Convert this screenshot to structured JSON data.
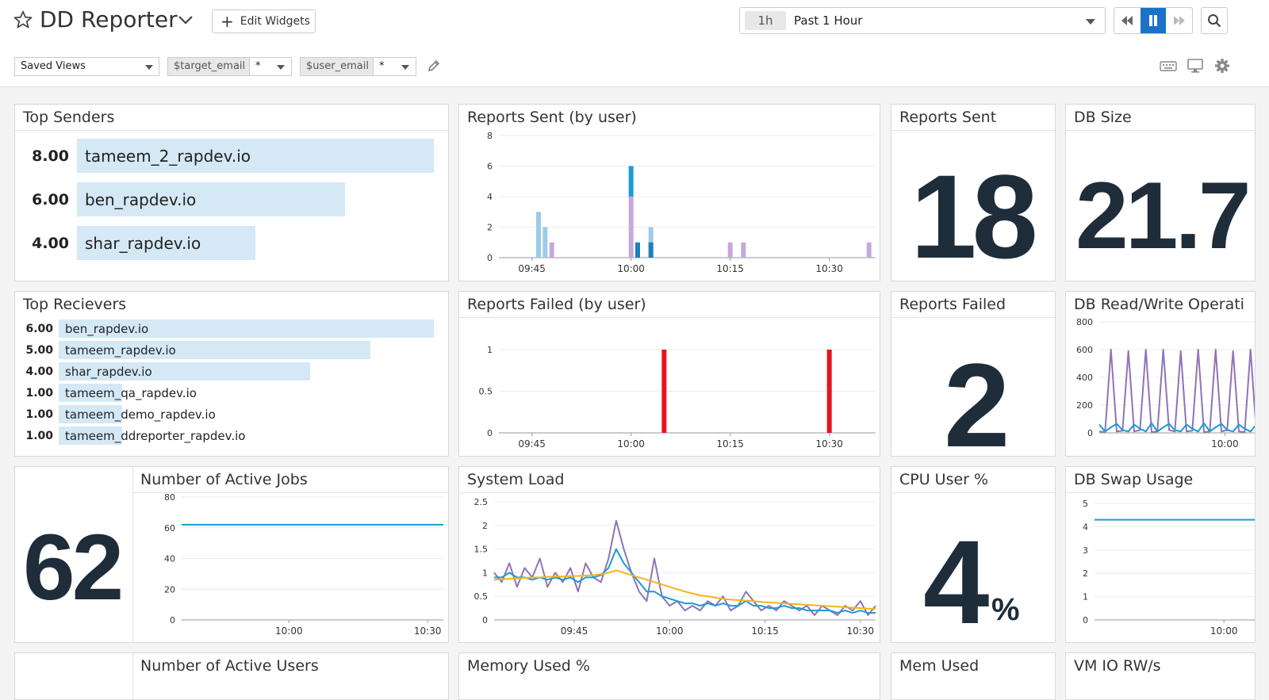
{
  "header": {
    "title": "DD Reporter",
    "edit_widgets_label": "Edit Widgets",
    "time_abbr": "1h",
    "time_label": "Past 1 Hour"
  },
  "filters": {
    "saved_views": "Saved Views",
    "var1_name": "$target_email",
    "var1_value": "*",
    "var2_name": "$user_email",
    "var2_value": "*"
  },
  "colors": {
    "accent": "#1a73c8",
    "bar_fill": "#d4e8f5",
    "bignum": "#1f2d3a",
    "failed": "#e8141d",
    "series_purple": "#8f74b7",
    "series_blue": "#1c9ad6",
    "series_yellow": "#f1b51d"
  },
  "widgets": {
    "top_senders": {
      "title": "Top Senders",
      "rows": [
        {
          "value": "8.00",
          "name": "tameem_2_rapdev.io",
          "fraction": 1.0
        },
        {
          "value": "6.00",
          "name": "ben_rapdev.io",
          "fraction": 0.75
        },
        {
          "value": "4.00",
          "name": "shar_rapdev.io",
          "fraction": 0.5
        }
      ]
    },
    "top_receivers": {
      "title": "Top Recievers",
      "rows": [
        {
          "value": "6.00",
          "name": "ben_rapdev.io",
          "fraction": 1.0
        },
        {
          "value": "5.00",
          "name": "tameem_rapdev.io",
          "fraction": 0.83
        },
        {
          "value": "4.00",
          "name": "shar_rapdev.io",
          "fraction": 0.67
        },
        {
          "value": "1.00",
          "name": "tameem_qa_rapdev.io",
          "fraction": 0.17
        },
        {
          "value": "1.00",
          "name": "tameem_demo_rapdev.io",
          "fraction": 0.17
        },
        {
          "value": "1.00",
          "name": "tameem_ddreporter_rapdev.io",
          "fraction": 0.17
        }
      ]
    },
    "reports_sent_value": {
      "title": "Reports Sent",
      "value": "18"
    },
    "db_size": {
      "title": "DB Size",
      "value": "21.7"
    },
    "reports_failed_value": {
      "title": "Reports Failed",
      "value": "2"
    },
    "active_jobs_value": {
      "value": "62"
    },
    "cpu_user": {
      "title": "CPU User %",
      "value": "4",
      "unit": "%"
    },
    "bottom": {
      "active_users_title": "Number of Active Users",
      "memory_title": "Memory Used %",
      "mem_used_title": "Mem Used",
      "vm_io_title": "VM IO RW/s"
    }
  },
  "chart_data": [
    {
      "id": "reports_sent_by_user",
      "type": "bar",
      "title": "Reports Sent (by user)",
      "ylim": [
        0,
        8
      ],
      "yticks": [
        0,
        2,
        4,
        6,
        8
      ],
      "xlim": [
        "09:40",
        "10:37"
      ],
      "xticks": [
        "09:45",
        "10:00",
        "10:15",
        "10:30"
      ],
      "series": [
        {
          "color": "#9ccbe8",
          "points": [
            {
              "x": "09:46",
              "y": 3
            },
            {
              "x": "09:47",
              "y": 2
            },
            {
              "x": "10:03",
              "y": 2
            }
          ]
        },
        {
          "color": "#c5a8dd",
          "points": [
            {
              "x": "09:48",
              "y": 1
            },
            {
              "x": "10:00",
              "y": 4
            },
            {
              "x": "10:15",
              "y": 1
            },
            {
              "x": "10:17",
              "y": 1
            },
            {
              "x": "10:36",
              "y": 1
            }
          ]
        },
        {
          "color": "#1c9ad6",
          "stack_on": 4,
          "points": [
            {
              "x": "10:00",
              "y": 2
            }
          ]
        },
        {
          "color": "#1c7fc0",
          "points": [
            {
              "x": "10:01",
              "y": 1
            },
            {
              "x": "10:03",
              "y": 1
            }
          ]
        }
      ]
    },
    {
      "id": "reports_failed_by_user",
      "type": "bar",
      "title": "Reports Failed (by user)",
      "ylim": [
        0,
        1.2
      ],
      "yticks": [
        0,
        0.5,
        1
      ],
      "xlim": [
        "09:40",
        "10:37"
      ],
      "xticks": [
        "09:45",
        "10:00",
        "10:15",
        "10:30"
      ],
      "series": [
        {
          "color": "#e8141d",
          "points": [
            {
              "x": "10:05",
              "y": 1
            },
            {
              "x": "10:30",
              "y": 1
            }
          ]
        }
      ]
    },
    {
      "id": "db_read_write",
      "type": "line",
      "title": "DB Read/Write Operati",
      "ylim": [
        0,
        800
      ],
      "yticks": [
        0,
        200,
        400,
        600,
        800
      ],
      "xticks": [
        "10:00"
      ],
      "series": [
        {
          "color": "#8f74b7",
          "values": [
            10,
            5,
            600,
            10,
            15,
            590,
            10,
            20,
            600,
            5,
            10,
            600,
            20,
            10,
            590,
            10,
            15,
            600,
            5,
            10,
            600,
            10,
            20,
            590,
            10,
            5,
            600,
            10
          ]
        },
        {
          "color": "#1c9ad6",
          "values": [
            60,
            10,
            40,
            65,
            20,
            10,
            60,
            30,
            10,
            70,
            10,
            40,
            65,
            20,
            10,
            60,
            30,
            10,
            70,
            10,
            40,
            65,
            20,
            10,
            60,
            30,
            10,
            60
          ]
        }
      ]
    },
    {
      "id": "active_jobs",
      "type": "line",
      "title": "Number of Active Jobs",
      "ylim": [
        0,
        80
      ],
      "yticks": [
        0,
        20,
        40,
        60,
        80
      ],
      "xticks": [
        "10:00",
        "10:30"
      ],
      "series": [
        {
          "color": "#1c9ad6",
          "values": [
            62,
            62
          ]
        }
      ]
    },
    {
      "id": "system_load",
      "type": "line",
      "title": "System Load",
      "ylim": [
        0,
        2.5
      ],
      "yticks": [
        0,
        0.5,
        1,
        1.5,
        2,
        2.5
      ],
      "xticks": [
        "09:45",
        "10:00",
        "10:15",
        "10:30"
      ],
      "series": [
        {
          "color": "#8f74b7",
          "values": [
            1.0,
            0.8,
            1.2,
            0.7,
            1.1,
            0.9,
            1.3,
            0.7,
            1.0,
            0.8,
            1.1,
            0.6,
            1.2,
            0.9,
            0.8,
            1.3,
            2.1,
            1.5,
            1.0,
            0.6,
            0.4,
            1.3,
            0.5,
            0.3,
            0.4,
            0.2,
            0.3,
            0.2,
            0.4,
            0.3,
            0.5,
            0.2,
            0.3,
            0.6,
            0.4,
            0.2,
            0.3,
            0.2,
            0.4,
            0.3,
            0.2,
            0.3,
            0.1,
            0.3,
            0.2,
            0.1,
            0.3,
            0.2,
            0.4,
            0.1,
            0.3
          ]
        },
        {
          "color": "#1c9ad6",
          "values": [
            0.9,
            0.9,
            1.0,
            0.9,
            0.9,
            0.85,
            0.9,
            0.85,
            0.9,
            0.85,
            0.9,
            0.8,
            0.9,
            0.9,
            0.95,
            1.1,
            1.5,
            1.2,
            1.0,
            0.8,
            0.6,
            0.6,
            0.5,
            0.45,
            0.4,
            0.35,
            0.35,
            0.3,
            0.35,
            0.3,
            0.35,
            0.3,
            0.3,
            0.4,
            0.3,
            0.3,
            0.25,
            0.25,
            0.3,
            0.25,
            0.25,
            0.2,
            0.2,
            0.2,
            0.2,
            0.15,
            0.2,
            0.15,
            0.2,
            0.15,
            0.15
          ]
        },
        {
          "color": "#f1b51d",
          "values": [
            0.85,
            0.86,
            0.87,
            0.88,
            0.89,
            0.9,
            0.9,
            0.91,
            0.92,
            0.92,
            0.93,
            0.93,
            0.94,
            0.95,
            0.97,
            1.0,
            1.05,
            1.0,
            0.95,
            0.9,
            0.85,
            0.8,
            0.75,
            0.7,
            0.65,
            0.6,
            0.56,
            0.52,
            0.5,
            0.47,
            0.45,
            0.43,
            0.42,
            0.41,
            0.4,
            0.38,
            0.37,
            0.36,
            0.35,
            0.34,
            0.33,
            0.32,
            0.31,
            0.3,
            0.29,
            0.28,
            0.27,
            0.26,
            0.25,
            0.24,
            0.23
          ]
        }
      ]
    },
    {
      "id": "db_swap_usage",
      "type": "line",
      "title": "DB Swap Usage",
      "ylim": [
        0,
        5
      ],
      "yticks": [
        0,
        1,
        2,
        3,
        4,
        5
      ],
      "xticks": [
        "10:00"
      ],
      "series": [
        {
          "color": "#1c9ad6",
          "values": [
            4.3,
            4.3
          ]
        }
      ]
    }
  ]
}
